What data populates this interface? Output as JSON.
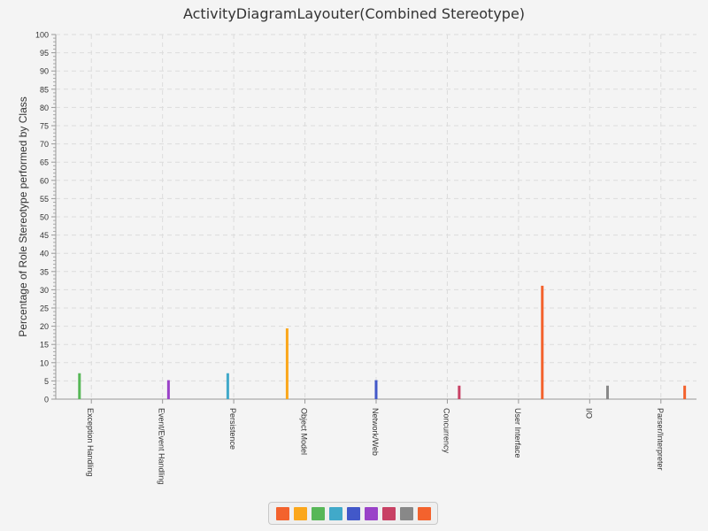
{
  "chart_data": {
    "type": "bar",
    "title": "ActivityDiagramLayouter(Combined Stereotype)",
    "xlabel": "",
    "ylabel": "Percentage of Role Stereotype performed by Class",
    "ylim": [
      0,
      100
    ],
    "ytick_step": 5,
    "grid": true,
    "legend_position": "bottom-center",
    "categories": [
      "Exception Handling",
      "Event/Event Handling",
      "Persistence",
      "Object Model",
      "Network/Web",
      "Concurrency",
      "User Interface",
      "I/O",
      "Parser/Interpreter"
    ],
    "series": [
      {
        "color": "#f3622d",
        "values": [
          0,
          0,
          0,
          0,
          0,
          0,
          0,
          0,
          0
        ]
      },
      {
        "color": "#fba71b",
        "values": [
          0,
          0,
          0,
          19.4,
          0,
          0,
          0,
          0,
          0
        ]
      },
      {
        "color": "#57b757",
        "values": [
          7.1,
          0,
          0,
          0,
          0,
          0,
          0,
          0,
          0
        ]
      },
      {
        "color": "#41a9c9",
        "values": [
          0,
          0,
          7.1,
          0,
          0,
          0,
          0,
          0,
          0
        ]
      },
      {
        "color": "#4258c9",
        "values": [
          0,
          0,
          0,
          0,
          5.2,
          0,
          0,
          0,
          0
        ]
      },
      {
        "color": "#9a42c8",
        "values": [
          0,
          5.2,
          0,
          0,
          0,
          0,
          0,
          0,
          0
        ]
      },
      {
        "color": "#c84164",
        "values": [
          0,
          0,
          0,
          0,
          0,
          3.7,
          0,
          0,
          0
        ]
      },
      {
        "color": "#888888",
        "values": [
          0,
          0,
          0,
          0,
          0,
          0,
          0,
          3.7,
          0
        ]
      },
      {
        "color": "#f3622d",
        "values": [
          0,
          0,
          0,
          0,
          0,
          0,
          31.1,
          0,
          3.7
        ]
      }
    ]
  }
}
